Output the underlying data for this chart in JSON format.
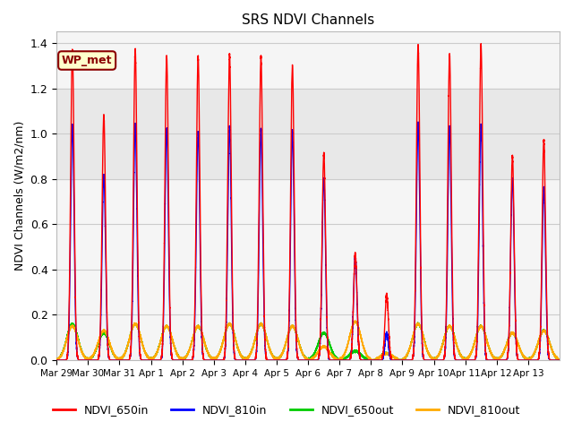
{
  "title": "SRS NDVI Channels",
  "ylabel": "NDVI Channels (W/m2/nm)",
  "ylim": [
    0,
    1.45
  ],
  "shade_band": [
    0.8,
    1.2
  ],
  "shade_color": "#e8e8e8",
  "wp_label": "WP_met",
  "wp_bg": "#ffffcc",
  "wp_border": "#8b0000",
  "legend_labels": [
    "NDVI_650in",
    "NDVI_810in",
    "NDVI_650out",
    "NDVI_810out"
  ],
  "legend_colors": [
    "#ff0000",
    "#0000ff",
    "#00cc00",
    "#ffaa00"
  ],
  "tick_labels": [
    "Mar 29",
    "Mar 30",
    "Mar 31",
    "Apr 1",
    "Apr 2",
    "Apr 3",
    "Apr 4",
    "Apr 5",
    "Apr 6",
    "Apr 7",
    "Apr 8",
    "Apr 9",
    "Apr 10",
    "Apr 11",
    "Apr 12",
    "Apr 13"
  ],
  "num_days": 16,
  "daily_peaks_650in": [
    1.37,
    1.08,
    1.37,
    1.34,
    1.34,
    1.35,
    1.34,
    1.3,
    0.91,
    0.47,
    0.29,
    1.39,
    1.35,
    1.39,
    0.9,
    0.97
  ],
  "daily_peaks_810in": [
    1.04,
    0.82,
    1.04,
    1.02,
    1.01,
    1.03,
    1.02,
    1.01,
    0.8,
    0.46,
    0.12,
    1.05,
    1.03,
    1.04,
    0.8,
    0.76
  ],
  "daily_peaks_650out": [
    0.16,
    0.12,
    0.16,
    0.15,
    0.15,
    0.16,
    0.16,
    0.15,
    0.12,
    0.04,
    0.03,
    0.16,
    0.15,
    0.15,
    0.12,
    0.13
  ],
  "daily_peaks_810out": [
    0.15,
    0.13,
    0.16,
    0.15,
    0.15,
    0.16,
    0.16,
    0.15,
    0.06,
    0.17,
    0.03,
    0.16,
    0.15,
    0.15,
    0.12,
    0.13
  ],
  "background_color": "#f5f5f5",
  "grid_color": "#cccccc"
}
